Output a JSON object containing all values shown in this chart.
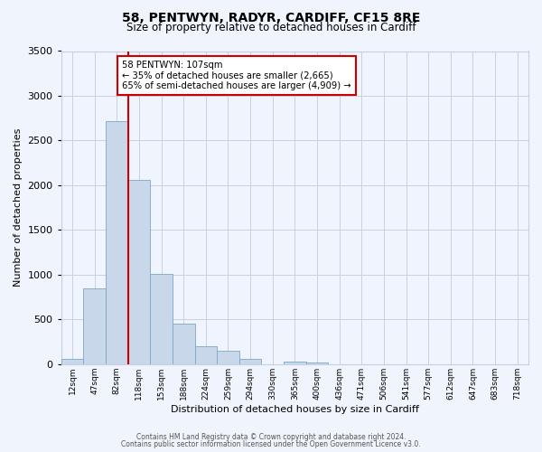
{
  "title": "58, PENTWYN, RADYR, CARDIFF, CF15 8RE",
  "subtitle": "Size of property relative to detached houses in Cardiff",
  "xlabel": "Distribution of detached houses by size in Cardiff",
  "ylabel": "Number of detached properties",
  "bin_labels": [
    "12sqm",
    "47sqm",
    "82sqm",
    "118sqm",
    "153sqm",
    "188sqm",
    "224sqm",
    "259sqm",
    "294sqm",
    "330sqm",
    "365sqm",
    "400sqm",
    "436sqm",
    "471sqm",
    "506sqm",
    "541sqm",
    "577sqm",
    "612sqm",
    "647sqm",
    "683sqm",
    "718sqm"
  ],
  "bar_values": [
    55,
    850,
    2720,
    2060,
    1005,
    455,
    205,
    145,
    55,
    0,
    30,
    15,
    0,
    0,
    0,
    0,
    0,
    0,
    0,
    0,
    0
  ],
  "bar_color": "#c8d8ea",
  "bar_edge_color": "#7aa8c8",
  "vline_color": "#cc0000",
  "annotation_line1": "58 PENTWYN: 107sqm",
  "annotation_line2": "← 35% of detached houses are smaller (2,665)",
  "annotation_line3": "65% of semi-detached houses are larger (4,909) →",
  "annotation_box_color": "#ffffff",
  "annotation_box_edge": "#cc0000",
  "footnote1": "Contains HM Land Registry data © Crown copyright and database right 2024.",
  "footnote2": "Contains public sector information licensed under the Open Government Licence v3.0.",
  "ylim": [
    0,
    3500
  ],
  "yticks": [
    0,
    500,
    1000,
    1500,
    2000,
    2500,
    3000,
    3500
  ],
  "background_color": "#f0f4fc",
  "grid_color": "#c8d0e0",
  "title_fontsize": 10,
  "subtitle_fontsize": 8.5
}
